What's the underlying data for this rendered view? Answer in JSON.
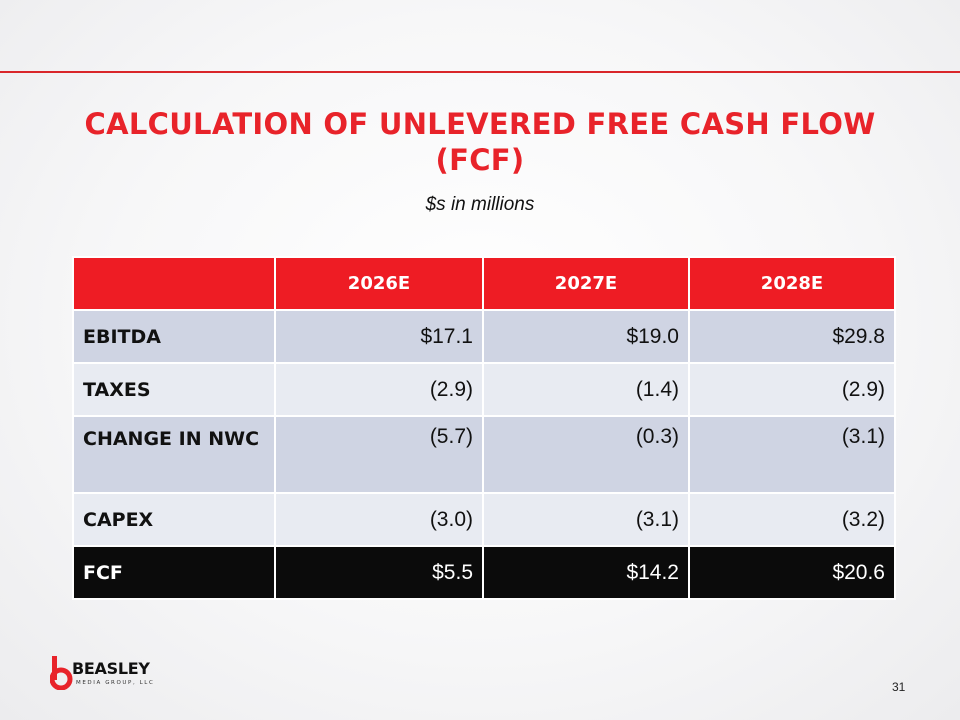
{
  "slide": {
    "title": "CALCULATION OF UNLEVERED FREE CASH FLOW (FCF)",
    "subtitle": "$s in millions",
    "page_number": "31"
  },
  "table": {
    "header": [
      "",
      "2026E",
      "2027E",
      "2028E"
    ],
    "rows": [
      {
        "label": "EBITDA",
        "values": [
          "$17.1",
          "$19.0",
          "$29.8"
        ]
      },
      {
        "label": "TAXES",
        "values": [
          "(2.9)",
          "(1.4)",
          "(2.9)"
        ]
      },
      {
        "label": "CHANGE IN NWC",
        "values": [
          "(5.7)",
          "(0.3)",
          "(3.1)"
        ]
      },
      {
        "label": "CAPEX",
        "values": [
          "(3.0)",
          "(3.1)",
          "(3.2)"
        ]
      },
      {
        "label": "FCF",
        "values": [
          "$5.5",
          "$14.2",
          "$20.6"
        ]
      }
    ]
  },
  "logo": {
    "name": "BEASLEY",
    "subtitle": "MEDIA GROUP, LLC"
  },
  "colors": {
    "accent_red": "#ee1c24",
    "title_red": "#e8232a",
    "row_dark": "#cfd4e3",
    "row_light": "#e8ebf2",
    "total_row": "#0b0b0b"
  }
}
